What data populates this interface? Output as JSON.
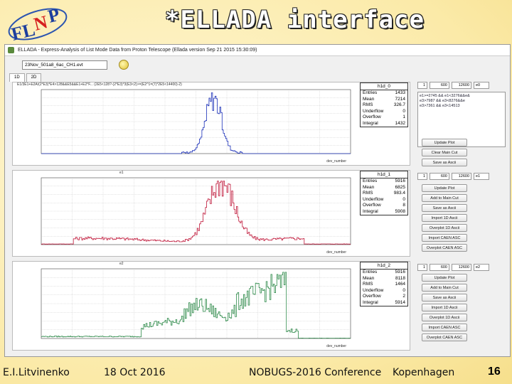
{
  "slide": {
    "logo_text": "FLNP",
    "title": "*ELLADA interface",
    "footer": {
      "author": "E.I.Litvinenko",
      "date": "18 Oct 2016",
      "conference": "NOBUGS-2016 Conference",
      "city": "Kopenhagen",
      "page": "16"
    }
  },
  "window": {
    "title": "ELLADA - Express-Analysis of List Mode Data from Proton Telescope (Ellada version Sep 21 2015 15:30:09)",
    "file_value": "23Nov_501a8_6ac_CH1.evt",
    "tabs": [
      "1D",
      "2D"
    ]
  },
  "histograms": [
    {
      "name": "h1d_0",
      "formula": "E1/3E1+E2A/(2*E3)*E4>128&&E5&&E1+E2*F... (2E5<128?-(2*E3)*3(E3<2)>=(E2^1=(7)*2E5<14400)-2)",
      "color": "#1a2fb8",
      "axis_label": "dev_number",
      "stats": [
        {
          "k": "Entries",
          "v": "1433"
        },
        {
          "k": "Mean",
          "v": "7214"
        },
        {
          "k": "RMS",
          "v": "326.7"
        },
        {
          "k": "Underflow",
          "v": "0"
        },
        {
          "k": "Overflow",
          "v": "1"
        },
        {
          "k": "Integral",
          "v": "1432"
        }
      ]
    },
    {
      "name": "h1d_1",
      "formula": "e1",
      "color": "#c0183a",
      "axis_label": "dev_number",
      "stats": [
        {
          "k": "Entries",
          "v": "5916"
        },
        {
          "k": "Mean",
          "v": "6825"
        },
        {
          "k": "RMS",
          "v": "983.4"
        },
        {
          "k": "Underflow",
          "v": "0"
        },
        {
          "k": "Overflow",
          "v": "8"
        },
        {
          "k": "Integral",
          "v": "5908"
        }
      ]
    },
    {
      "name": "h1d_2",
      "formula": "e2",
      "color": "#2e8a4a",
      "axis_label": "dev_number",
      "stats": [
        {
          "k": "Entries",
          "v": "5916"
        },
        {
          "k": "Mean",
          "v": "8118"
        },
        {
          "k": "RMS",
          "v": "1464"
        },
        {
          "k": "Underflow",
          "v": "0"
        },
        {
          "k": "Overflow",
          "v": "2"
        },
        {
          "k": "Integral",
          "v": "5914"
        }
      ]
    }
  ],
  "controls": [
    {
      "bins": "1",
      "min": "600",
      "max": "12600",
      "combo": "e0",
      "buttons": [
        "Update Plot",
        "Clear Main Cut",
        "Save as Ascii"
      ]
    },
    {
      "bins": "1",
      "min": "600",
      "max": "12600",
      "combo": "e1",
      "buttons": [
        "Update Plot",
        "Add to Main Cut",
        "Save as Ascii",
        "Import 1D Ascii",
        "Overplot 1D Ascii",
        "Import CAEN ASC",
        "Overplot CAEN ASC"
      ]
    },
    {
      "bins": "1",
      "min": "600",
      "max": "12600",
      "combo": "e2",
      "buttons": [
        "Update Plot",
        "Add to Main Cut",
        "Save as Ascii",
        "Import 1D Ascii",
        "Overplot 1D Ascii",
        "Import CAEN ASC",
        "Overplot CAEN ASC"
      ]
    }
  ],
  "cut_list": [
    "e1>=2745 && e1<3276&&e&",
    "e3>7987 && e3<8276&&e",
    "e3>7361 && e3<14513"
  ],
  "colors": {
    "blue": "#1a2fb8",
    "red": "#c0183a",
    "green": "#2e8a4a",
    "title_outline": "#222222"
  }
}
